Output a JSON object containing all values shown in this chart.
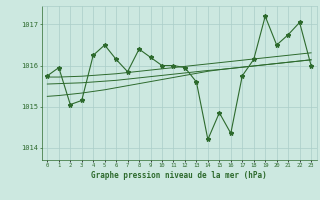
{
  "x": [
    0,
    1,
    2,
    3,
    4,
    5,
    6,
    7,
    8,
    9,
    10,
    11,
    12,
    13,
    14,
    15,
    16,
    17,
    18,
    19,
    20,
    21,
    22,
    23
  ],
  "y_main": [
    1015.75,
    1015.95,
    1015.05,
    1015.15,
    1016.25,
    1016.5,
    1016.15,
    1015.85,
    1016.4,
    1016.2,
    1016.0,
    1016.0,
    1015.95,
    1015.6,
    1014.2,
    1014.85,
    1014.35,
    1015.75,
    1016.15,
    1017.2,
    1016.5,
    1016.75,
    1017.05,
    1016.0
  ],
  "y_line1": [
    1015.72,
    1015.72,
    1015.73,
    1015.74,
    1015.76,
    1015.78,
    1015.8,
    1015.83,
    1015.86,
    1015.89,
    1015.92,
    1015.95,
    1015.98,
    1016.01,
    1016.04,
    1016.07,
    1016.1,
    1016.13,
    1016.16,
    1016.19,
    1016.22,
    1016.25,
    1016.28,
    1016.31
  ],
  "y_line2": [
    1015.55,
    1015.56,
    1015.57,
    1015.58,
    1015.6,
    1015.62,
    1015.64,
    1015.67,
    1015.7,
    1015.73,
    1015.76,
    1015.79,
    1015.82,
    1015.85,
    1015.88,
    1015.9,
    1015.93,
    1015.96,
    1015.99,
    1016.02,
    1016.05,
    1016.08,
    1016.11,
    1016.14
  ],
  "y_line3": [
    1015.25,
    1015.27,
    1015.3,
    1015.33,
    1015.37,
    1015.41,
    1015.46,
    1015.51,
    1015.56,
    1015.61,
    1015.66,
    1015.71,
    1015.76,
    1015.81,
    1015.86,
    1015.9,
    1015.93,
    1015.96,
    1015.99,
    1016.02,
    1016.05,
    1016.08,
    1016.11,
    1016.14
  ],
  "line_color": "#2d6a2d",
  "bg_color": "#cce8e0",
  "grid_color": "#aacec8",
  "title": "Graphe pression niveau de la mer (hPa)",
  "yticks": [
    1014,
    1015,
    1016,
    1017
  ],
  "ylim": [
    1013.7,
    1017.45
  ],
  "xlim": [
    -0.5,
    23.5
  ]
}
